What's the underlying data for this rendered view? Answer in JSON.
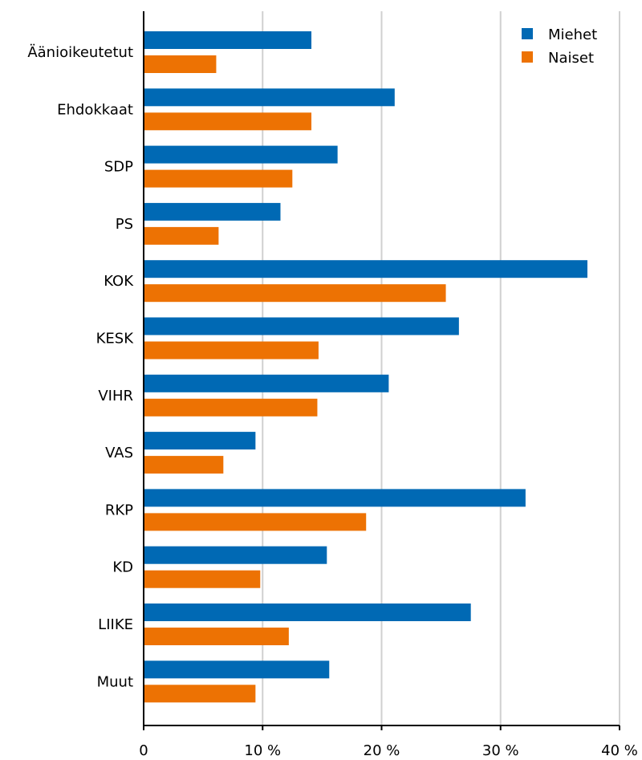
{
  "chart_data": {
    "type": "bar",
    "orientation": "horizontal",
    "categories": [
      "Äänioikeutetut",
      "Ehdokkaat",
      "SDP",
      "PS",
      "KOK",
      "KESK",
      "VIHR",
      "VAS",
      "RKP",
      "KD",
      "LIIKE",
      "Muut"
    ],
    "series": [
      {
        "name": "Miehet",
        "color": "#0069b4",
        "values": [
          14.1,
          21.1,
          16.3,
          11.5,
          37.3,
          26.5,
          20.6,
          9.4,
          32.1,
          15.4,
          27.5,
          15.6
        ]
      },
      {
        "name": "Naiset",
        "color": "#ed7203",
        "values": [
          6.1,
          14.1,
          12.5,
          6.3,
          25.4,
          14.7,
          14.6,
          6.7,
          18.7,
          9.8,
          12.2,
          9.4
        ]
      }
    ],
    "xlim": [
      0,
      40
    ],
    "xticks": [
      0,
      10,
      20,
      30,
      40
    ],
    "xtick_labels": [
      "0",
      "10 %",
      "20 %",
      "30 %",
      "40 %"
    ],
    "grid": true,
    "legend_position": "top-right"
  }
}
